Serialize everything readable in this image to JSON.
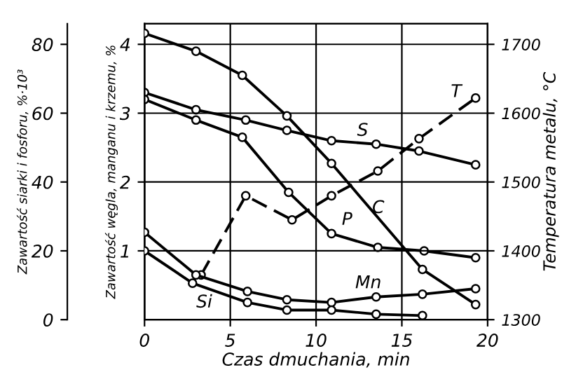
{
  "chart_data": {
    "type": "line",
    "xlabel": "Czas dmuchania, min",
    "ylabel": "Zawartość węgla, manganu i krzemu, %",
    "y2label": "Temperatura metalu, °C",
    "y3label": "Zawartość siarki i fosforu, %·10³",
    "xlim": [
      0,
      20
    ],
    "xticks": [
      0,
      5,
      10,
      15,
      20
    ],
    "ylim": [
      0,
      4.3
    ],
    "yticks": [
      1,
      2,
      3,
      4
    ],
    "y2lim": [
      1300,
      1730
    ],
    "y2ticks": [
      1300,
      1400,
      1500,
      1600,
      1700
    ],
    "y3lim": [
      0,
      86
    ],
    "y3ticks": [
      0,
      20,
      40,
      60,
      80
    ],
    "grid": true,
    "legend": false,
    "marker": "circle",
    "series": [
      {
        "name": "C",
        "color": "#000000",
        "x": [
          0,
          3.0,
          5.7,
          8.3,
          10.9,
          16.2,
          19.3
        ],
        "values": [
          4.16,
          3.9,
          3.55,
          2.96,
          2.27,
          0.73,
          0.22
        ]
      },
      {
        "name": "S",
        "color": "#000000",
        "axis": "y3",
        "x": [
          0,
          3.0,
          5.9,
          8.3,
          10.9,
          13.5,
          16.0,
          19.3
        ],
        "values": [
          66,
          61,
          58,
          55,
          52,
          51,
          49,
          45
        ]
      },
      {
        "name": "P",
        "color": "#000000",
        "axis": "y3",
        "x": [
          0,
          3.0,
          5.7,
          8.4,
          10.9,
          13.6,
          16.3,
          19.3
        ],
        "values": [
          64,
          58,
          53,
          37,
          25,
          21,
          20,
          18
        ]
      },
      {
        "name": "T",
        "color": "#000000",
        "axis": "y2",
        "line_style": "dashed",
        "x": [
          3.3,
          5.9,
          8.6,
          10.9,
          13.6,
          16.0,
          19.3
        ],
        "values": [
          1365,
          1480,
          1445,
          1480,
          1516,
          1563,
          1622
        ]
      },
      {
        "name": "Mn",
        "color": "#000000",
        "x": [
          0,
          3.0,
          6.0,
          8.3,
          10.9,
          13.5,
          16.2,
          19.3
        ],
        "values": [
          1.27,
          0.65,
          0.41,
          0.29,
          0.25,
          0.33,
          0.37,
          0.45
        ]
      },
      {
        "name": "Si",
        "color": "#000000",
        "x": [
          0,
          2.8,
          6.0,
          8.3,
          10.9,
          13.5,
          16.2
        ],
        "values": [
          1.0,
          0.53,
          0.25,
          0.14,
          0.14,
          0.08,
          0.06
        ]
      }
    ]
  }
}
